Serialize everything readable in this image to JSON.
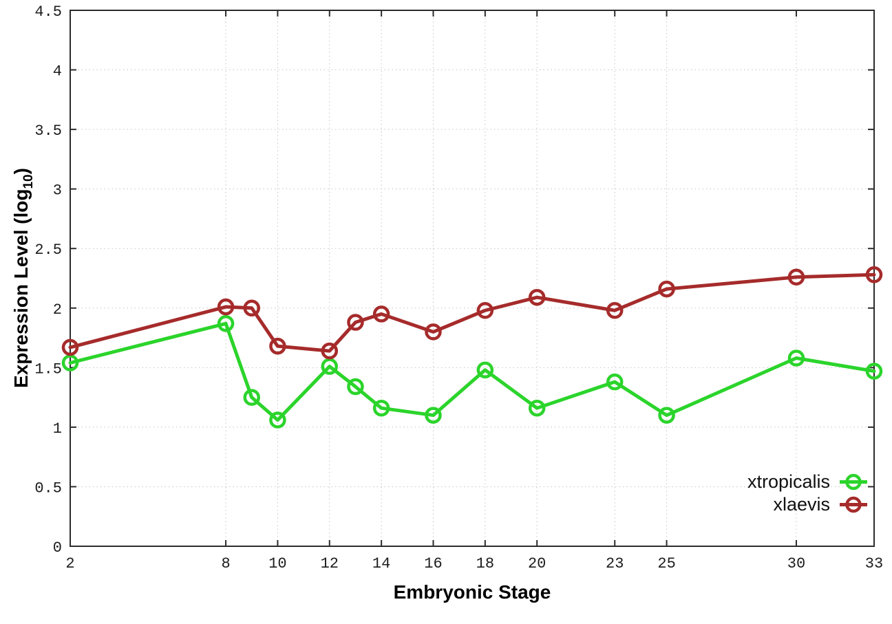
{
  "chart_data": {
    "type": "line",
    "title": "",
    "xlabel": "Embryonic Stage",
    "ylabel": "Expression Level (log10)",
    "ylabel_parts": {
      "pre": "Expression Level (log",
      "sub": "10",
      "post": ")"
    },
    "x": [
      2,
      8,
      9,
      10,
      12,
      13,
      14,
      16,
      18,
      20,
      23,
      25,
      30,
      33
    ],
    "series": [
      {
        "name": "xtropicalis",
        "color": "#2bd42b",
        "values": [
          1.54,
          1.87,
          1.25,
          1.06,
          1.51,
          1.34,
          1.16,
          1.1,
          1.48,
          1.16,
          1.38,
          1.1,
          1.58,
          1.47
        ]
      },
      {
        "name": "xlaevis",
        "color": "#a62b2b",
        "values": [
          1.67,
          2.01,
          2.0,
          1.68,
          1.64,
          1.88,
          1.95,
          1.8,
          1.98,
          2.09,
          1.98,
          2.16,
          2.26,
          2.28
        ]
      }
    ],
    "xlim": [
      2,
      33
    ],
    "ylim": [
      0,
      4.5
    ],
    "xticks": {
      "values": [
        2,
        8,
        10,
        12,
        14,
        16,
        18,
        20,
        23,
        25,
        30,
        33
      ],
      "labels": [
        "2",
        "8",
        "10",
        "12",
        "14",
        "16",
        "18",
        "20",
        "23",
        "25",
        "30",
        "33"
      ]
    },
    "yticks": {
      "values": [
        0,
        0.5,
        1,
        1.5,
        2,
        2.5,
        3,
        3.5,
        4,
        4.5
      ],
      "labels": [
        "0",
        "0.5",
        "1",
        "1.5",
        "2",
        "2.5",
        "3",
        "3.5",
        "4",
        "4.5"
      ]
    },
    "grid": true,
    "marker": "open-circle",
    "legend_position": "bottom-right-inside",
    "background_color": "#ffffff",
    "axis_color": "#2b2b2b",
    "grid_color": "#c4c4c4"
  }
}
